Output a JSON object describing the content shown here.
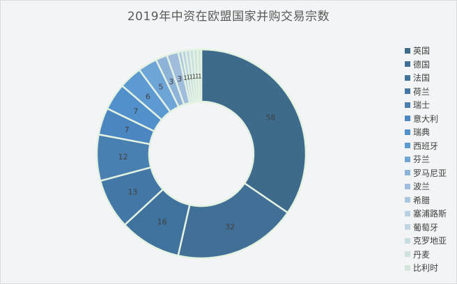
{
  "chart_data": {
    "type": "pie",
    "variant": "donut",
    "title": "2019年中资在欧盟国家并购交易宗数",
    "categories": [
      "英国",
      "德国",
      "法国",
      "荷兰",
      "瑞士",
      "意大利",
      "瑞典",
      "西班牙",
      "芬兰",
      "罗马尼亚",
      "波兰",
      "希腊",
      "塞浦路斯",
      "葡萄牙",
      "克罗地亚",
      "丹麦",
      "比利时"
    ],
    "values": [
      58,
      32,
      16,
      13,
      12,
      7,
      7,
      6,
      5,
      3,
      3,
      1,
      1,
      1,
      1,
      1,
      1
    ],
    "colors": [
      "#3e6a8c",
      "#426f95",
      "#3f729d",
      "#4277a6",
      "#4a7fb1",
      "#4b86c0",
      "#5190cb",
      "#5e9ad2",
      "#6ea5d9",
      "#8eb3d9",
      "#9fbcdc",
      "#aac6df",
      "#b7d0e2",
      "#c0d5e2",
      "#c8dde2",
      "#cde2dd",
      "#d4e6dc"
    ],
    "legend_position": "right",
    "data_labels": true
  }
}
